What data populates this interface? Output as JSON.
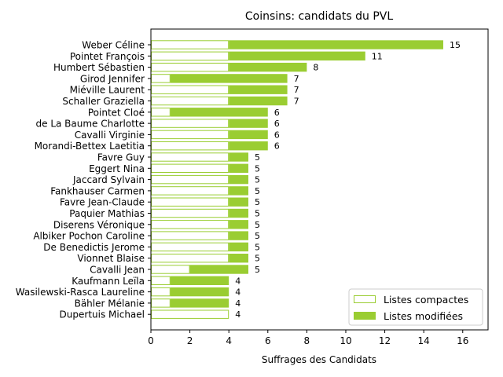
{
  "chart_data": {
    "type": "bar",
    "orientation": "horizontal",
    "stacked": true,
    "title": "Coinsins: candidats du PVL",
    "xlabel": "Suffrages des Candidats",
    "ylabel": "",
    "xlim": [
      0,
      17.3
    ],
    "xticks": [
      0,
      2,
      4,
      6,
      8,
      10,
      12,
      14,
      16
    ],
    "grid": false,
    "legend_position": "lower-right",
    "categories": [
      "Weber Céline",
      "Pointet François",
      "Humbert Sébastien",
      "Girod Jennifer",
      "Miéville Laurent",
      "Schaller Graziella",
      "Pointet Cloé",
      "de La Baume Charlotte",
      "Cavalli Virginie",
      "Morandi-Bettex Laetitia",
      "Favre Guy",
      "Eggert Nina",
      "Jaccard Sylvain",
      "Fankhauser Carmen",
      "Favre Jean-Claude",
      "Paquier Mathias",
      "Diserens Véronique",
      "Albiker Pochon Caroline",
      "De Benedictis Jerome",
      "Vionnet Blaise",
      "Cavalli Jean",
      "Kaufmann Leïla",
      "Wasilewski-Rasca Laureline",
      "Bähler Mélanie",
      "Dupertuis Michael"
    ],
    "series": [
      {
        "name": "Listes compactes",
        "color": "#9acd32",
        "style": "outline",
        "values": [
          4,
          4,
          4,
          1,
          4,
          4,
          1,
          4,
          4,
          4,
          4,
          4,
          4,
          4,
          4,
          4,
          4,
          4,
          4,
          4,
          2,
          1,
          1,
          1,
          4
        ]
      },
      {
        "name": "Listes modifiées",
        "color": "#9acd32",
        "style": "filled",
        "values": [
          11,
          7,
          4,
          6,
          3,
          3,
          5,
          2,
          2,
          2,
          1,
          1,
          1,
          1,
          1,
          1,
          1,
          1,
          1,
          1,
          3,
          3,
          3,
          3,
          0
        ]
      }
    ],
    "totals": [
      15,
      11,
      8,
      7,
      7,
      7,
      6,
      6,
      6,
      6,
      5,
      5,
      5,
      5,
      5,
      5,
      5,
      5,
      5,
      5,
      5,
      4,
      4,
      4,
      4
    ]
  }
}
